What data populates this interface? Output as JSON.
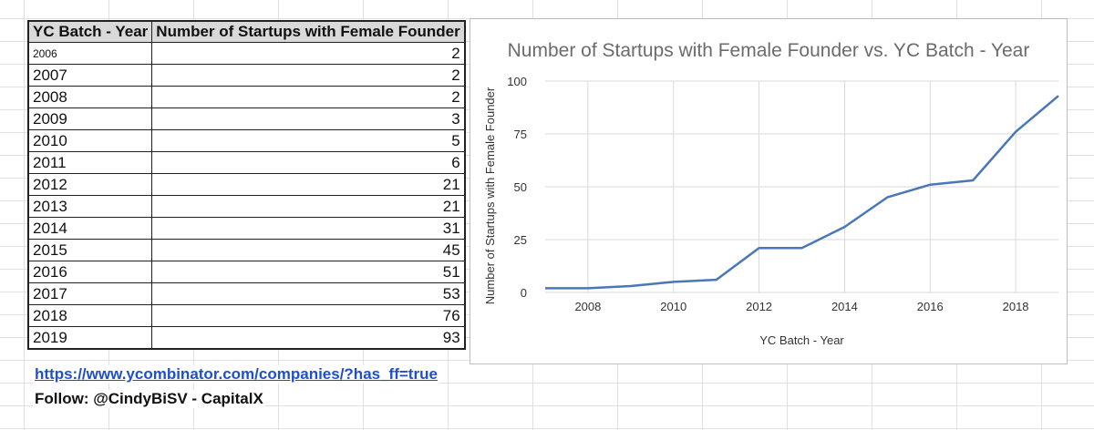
{
  "table": {
    "headers": [
      "YC Batch - Year",
      "Number of Startups with Female Founder"
    ],
    "rows": [
      [
        "2006",
        "2"
      ],
      [
        "2007",
        "2"
      ],
      [
        "2008",
        "2"
      ],
      [
        "2009",
        "3"
      ],
      [
        "2010",
        "5"
      ],
      [
        "2011",
        "6"
      ],
      [
        "2012",
        "21"
      ],
      [
        "2013",
        "21"
      ],
      [
        "2014",
        "31"
      ],
      [
        "2015",
        "45"
      ],
      [
        "2016",
        "51"
      ],
      [
        "2017",
        "53"
      ],
      [
        "2018",
        "76"
      ],
      [
        "2019",
        "93"
      ]
    ]
  },
  "footer": {
    "link": "https://www.ycombinator.com/companies/?has_ff=true",
    "follow": "Follow: @CindyBiSV - CapitalX"
  },
  "chart_data": {
    "type": "line",
    "title": "Number of Startups with Female Founder vs. YC Batch - Year",
    "xlabel": "YC Batch - Year",
    "ylabel": "Number of Startups with Female Founder",
    "x": [
      2007,
      2008,
      2009,
      2010,
      2011,
      2012,
      2013,
      2014,
      2015,
      2016,
      2017,
      2018,
      2019
    ],
    "series": [
      {
        "values": [
          2,
          2,
          3,
          5,
          6,
          21,
          21,
          31,
          45,
          51,
          53,
          76,
          93
        ]
      }
    ],
    "xlim": [
      2007,
      2019
    ],
    "ylim": [
      0,
      100
    ],
    "xticks": [
      2008,
      2010,
      2012,
      2014,
      2016,
      2018
    ],
    "yticks": [
      0,
      25,
      50,
      75,
      100
    ],
    "grid": true,
    "legend": "none",
    "line_color": "#4a78b5"
  }
}
